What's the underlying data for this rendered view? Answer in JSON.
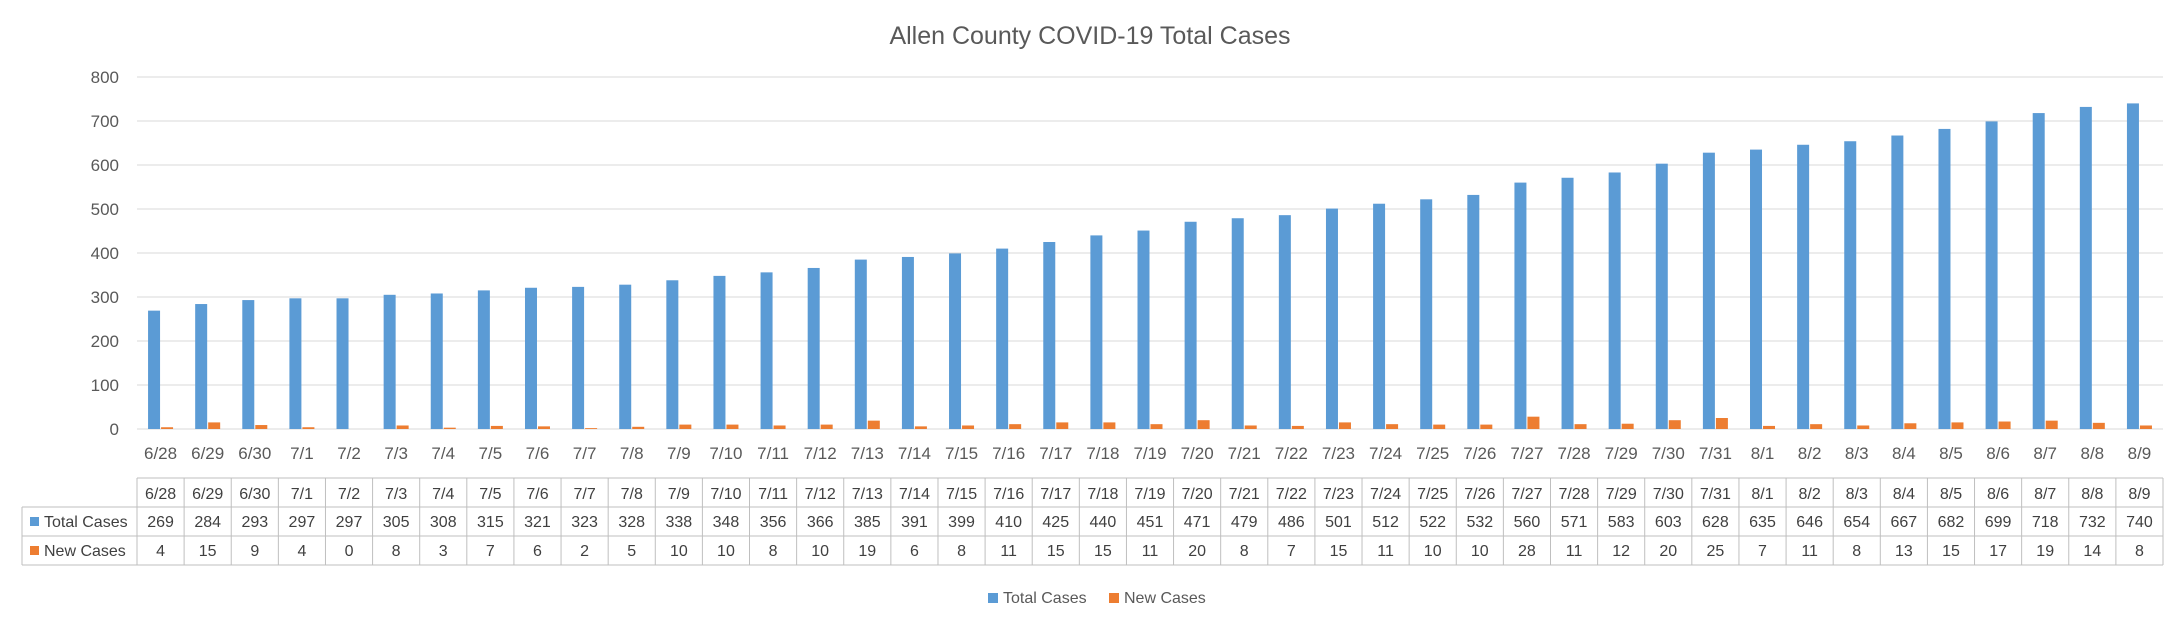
{
  "chart_data": {
    "type": "bar",
    "title": "Allen County COVID-19 Total Cases",
    "categories": [
      "6/28",
      "6/29",
      "6/30",
      "7/1",
      "7/2",
      "7/3",
      "7/4",
      "7/5",
      "7/6",
      "7/7",
      "7/8",
      "7/9",
      "7/10",
      "7/11",
      "7/12",
      "7/13",
      "7/14",
      "7/15",
      "7/16",
      "7/17",
      "7/18",
      "7/19",
      "7/20",
      "7/21",
      "7/22",
      "7/23",
      "7/24",
      "7/25",
      "7/26",
      "7/27",
      "7/28",
      "7/29",
      "7/30",
      "7/31",
      "8/1",
      "8/2",
      "8/3",
      "8/4",
      "8/5",
      "8/6",
      "8/7",
      "8/8",
      "8/9"
    ],
    "series": [
      {
        "name": "Total Cases",
        "color": "#5b9bd5",
        "values": [
          269,
          284,
          293,
          297,
          297,
          305,
          308,
          315,
          321,
          323,
          328,
          338,
          348,
          356,
          366,
          385,
          391,
          399,
          410,
          425,
          440,
          451,
          471,
          479,
          486,
          501,
          512,
          522,
          532,
          560,
          571,
          583,
          603,
          628,
          635,
          646,
          654,
          667,
          682,
          699,
          718,
          732,
          740
        ]
      },
      {
        "name": "New Cases",
        "color": "#ed7d31",
        "values": [
          4,
          15,
          9,
          4,
          0,
          8,
          3,
          7,
          6,
          2,
          5,
          10,
          10,
          8,
          10,
          19,
          6,
          8,
          11,
          15,
          15,
          11,
          20,
          8,
          7,
          15,
          11,
          10,
          10,
          28,
          11,
          12,
          20,
          25,
          7,
          11,
          8,
          13,
          15,
          17,
          19,
          14,
          8
        ]
      }
    ],
    "ylim": [
      0,
      800
    ],
    "yticks": [
      "0",
      "100",
      "200",
      "300",
      "400",
      "500",
      "600",
      "700",
      "800"
    ],
    "grid": true,
    "legend_position": "bottom",
    "data_table": true
  }
}
